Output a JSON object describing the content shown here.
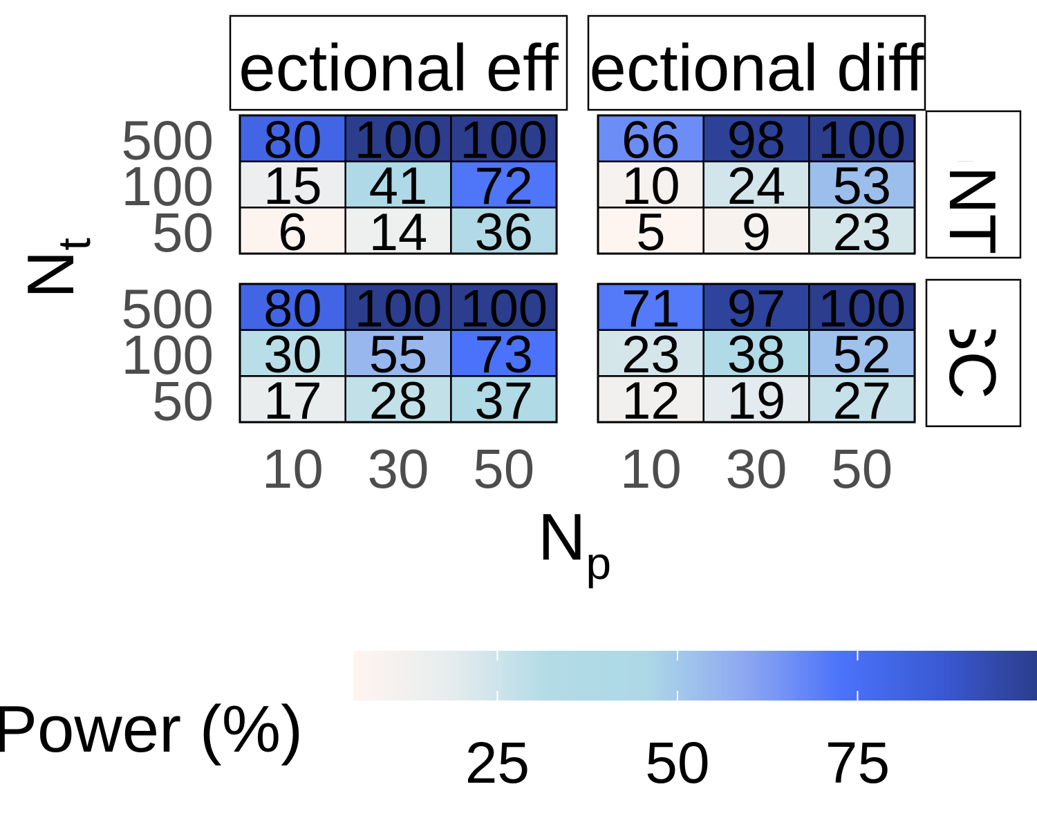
{
  "chart_data": {
    "type": "heatmap",
    "facet_columns": [
      "ectional eff",
      "ectional diff"
    ],
    "facet_rows": [
      "GNT",
      "SC"
    ],
    "x_ticks": [
      "10",
      "30",
      "50"
    ],
    "y_ticks": [
      "500",
      "100",
      "50"
    ],
    "xlabel": "N",
    "xlabel_sub": "p",
    "ylabel": "N",
    "ylabel_sub": "t",
    "panels": [
      {
        "row": "GNT",
        "col": "ectional eff",
        "values": [
          [
            80,
            100,
            100
          ],
          [
            15,
            41,
            72
          ],
          [
            6,
            14,
            36
          ]
        ]
      },
      {
        "row": "GNT",
        "col": "ectional diff",
        "values": [
          [
            66,
            98,
            100
          ],
          [
            10,
            24,
            53
          ],
          [
            5,
            9,
            23
          ]
        ]
      },
      {
        "row": "SC",
        "col": "ectional eff",
        "values": [
          [
            80,
            100,
            100
          ],
          [
            30,
            55,
            73
          ],
          [
            17,
            28,
            37
          ]
        ]
      },
      {
        "row": "SC",
        "col": "ectional diff",
        "values": [
          [
            71,
            97,
            100
          ],
          [
            23,
            38,
            52
          ],
          [
            12,
            19,
            27
          ]
        ]
      }
    ],
    "legend": {
      "title": "Power (%)",
      "ticks": [
        25,
        50,
        75
      ],
      "range": [
        5,
        100
      ],
      "colors": [
        "#fff5f0",
        "#e6ecee",
        "#b2dbe6",
        "#add8e6",
        "#8ea8f2",
        "#4b72fa",
        "#3a5ad4",
        "#2b3d8c"
      ],
      "placement": "bottom"
    }
  }
}
